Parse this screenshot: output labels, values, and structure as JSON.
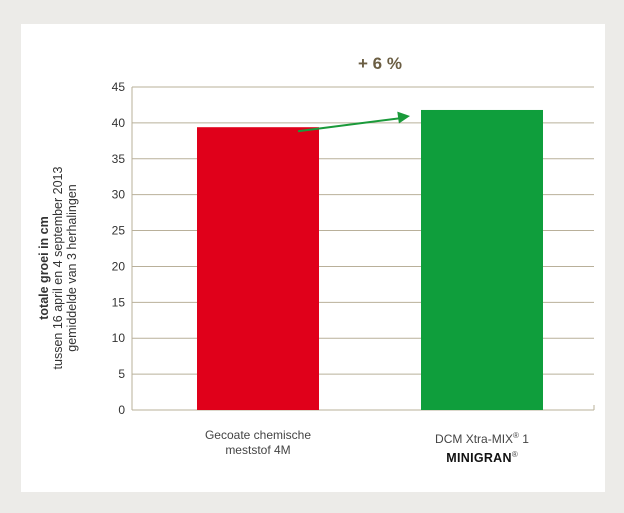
{
  "chart_data": {
    "type": "bar",
    "title": "+ 6 %",
    "ylabel": {
      "line1": "totale groei in cm",
      "line2": "tussen 16 april en 4 september 2013",
      "line3": "gemiddelde van 3 herhalingen"
    },
    "categories": [
      {
        "line1": "Gecoate chemische",
        "line2": "meststof 4M"
      },
      {
        "line1": "DCM Xtra-MIX",
        "line1_sup": "®",
        "line1_suffix": " 1",
        "line2": "MINIGRAN",
        "line2_sup": "®"
      }
    ],
    "values": [
      39.4,
      41.8
    ],
    "ylim": [
      0,
      45
    ],
    "yticks": [
      "0",
      "5",
      "10",
      "15",
      "20",
      "25",
      "30",
      "35",
      "40",
      "45"
    ],
    "grid": true,
    "colors": {
      "bar1": "#e0001a",
      "bar2": "#0f9e3c",
      "arrow": "#1a9a3a",
      "grid": "#b9b09a",
      "title": "#6b5e43"
    },
    "annotation": "arrow from first bar to second bar"
  }
}
